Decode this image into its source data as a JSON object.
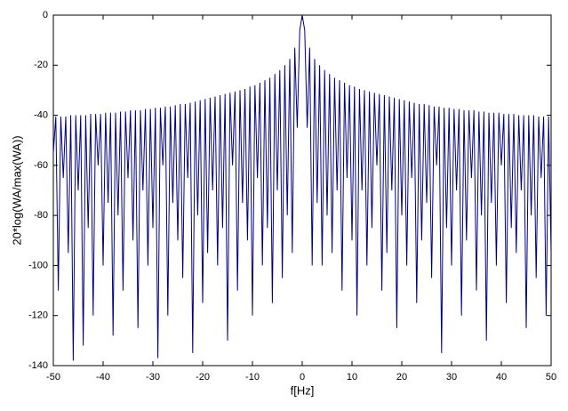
{
  "chart_data": {
    "type": "line",
    "xlabel": "f[Hz]",
    "ylabel": "20*log(WA/max(WA))",
    "color": "#00007f",
    "xlim": [
      -50,
      50
    ],
    "ylim": [
      -140,
      0
    ],
    "xticks": [
      -50,
      -40,
      -30,
      -20,
      -10,
      0,
      10,
      20,
      30,
      40,
      50
    ],
    "yticks": [
      0,
      -20,
      -40,
      -60,
      -80,
      -100,
      -120,
      -140
    ],
    "x": [
      -50,
      -49.5,
      -49,
      -48.5,
      -48,
      -47.5,
      -47,
      -46.5,
      -46,
      -45.5,
      -45,
      -44.5,
      -44,
      -43.5,
      -43,
      -42.5,
      -42,
      -41.5,
      -41,
      -40.5,
      -40,
      -39.5,
      -39,
      -38.5,
      -38,
      -37.5,
      -37,
      -36.5,
      -36,
      -35.5,
      -35,
      -34.5,
      -34,
      -33.5,
      -33,
      -32.5,
      -32,
      -31.5,
      -31,
      -30.5,
      -30,
      -29.5,
      -29,
      -28.5,
      -28,
      -27.5,
      -27,
      -26.5,
      -26,
      -25.5,
      -25,
      -24.5,
      -24,
      -23.5,
      -23,
      -22.5,
      -22,
      -21.5,
      -21,
      -20.5,
      -20,
      -19.5,
      -19,
      -18.5,
      -18,
      -17.5,
      -17,
      -16.5,
      -16,
      -15.5,
      -15,
      -14.5,
      -14,
      -13.5,
      -13,
      -12.5,
      -12,
      -11.5,
      -11,
      -10.5,
      -10,
      -9.5,
      -9,
      -8.5,
      -8,
      -7.5,
      -7,
      -6.5,
      -6,
      -5.5,
      -5,
      -4.5,
      -4,
      -3.5,
      -3,
      -2.5,
      -2,
      -1.5,
      -1,
      -0.5,
      0,
      0.5,
      1,
      1.5,
      2,
      2.5,
      3,
      3.5,
      4,
      4.5,
      5,
      5.5,
      6,
      6.5,
      7,
      7.5,
      8,
      8.5,
      9,
      9.5,
      10,
      10.5,
      11,
      11.5,
      12,
      12.5,
      13,
      13.5,
      14,
      14.5,
      15,
      15.5,
      16,
      16.5,
      17,
      17.5,
      18,
      18.5,
      19,
      19.5,
      20,
      20.5,
      21,
      21.5,
      22,
      22.5,
      23,
      23.5,
      24,
      24.5,
      25,
      25.5,
      26,
      26.5,
      27,
      27.5,
      28,
      28.5,
      29,
      29.5,
      30,
      30.5,
      31,
      31.5,
      32,
      32.5,
      33,
      33.5,
      34,
      34.5,
      35,
      35.5,
      36,
      36.5,
      37,
      37.5,
      38,
      38.5,
      39,
      39.5,
      40,
      40.5,
      41,
      41.5,
      42,
      42.5,
      43,
      43.5,
      44,
      44.5,
      45,
      45.5,
      46,
      46.5,
      47,
      47.5,
      48,
      48.5,
      49,
      49.5,
      50
    ],
    "values": [
      -55,
      -40.5,
      -110,
      -40.5,
      -65,
      -40.5,
      -95,
      -40,
      -138,
      -40,
      -70,
      -40,
      -132,
      -40,
      -85,
      -39.5,
      -120,
      -39.5,
      -60,
      -39.5,
      -100,
      -39,
      -75,
      -39,
      -128,
      -39,
      -80,
      -38.5,
      -110,
      -38.5,
      -65,
      -38,
      -90,
      -38,
      -125,
      -38,
      -70,
      -37.5,
      -100,
      -37.5,
      -85,
      -37,
      -137,
      -37,
      -60,
      -36.5,
      -120,
      -36.5,
      -75,
      -36,
      -90,
      -35.5,
      -105,
      -35.5,
      -65,
      -35,
      -135,
      -34.5,
      -80,
      -34,
      -115,
      -33.5,
      -95,
      -33,
      -70,
      -32.5,
      -100,
      -32,
      -85,
      -31.5,
      -130,
      -31,
      -60,
      -30.5,
      -110,
      -30,
      -75,
      -29.5,
      -90,
      -28.5,
      -120,
      -28,
      -65,
      -27,
      -100,
      -26,
      -85,
      -25,
      -115,
      -23.5,
      -70,
      -22,
      -105,
      -20,
      -80,
      -17.5,
      -95,
      -13,
      -45,
      -6,
      0,
      -6,
      -45,
      -13,
      -100,
      -17.5,
      -75,
      -20,
      -100,
      -22,
      -80,
      -23.5,
      -95,
      -25,
      -70,
      -26,
      -110,
      -27,
      -65,
      -28,
      -90,
      -28.5,
      -120,
      -29.5,
      -70,
      -30,
      -100,
      -30.5,
      -85,
      -31,
      -60,
      -31.5,
      -110,
      -32,
      -95,
      -32.5,
      -70,
      -33,
      -125,
      -33.5,
      -80,
      -34,
      -100,
      -34.5,
      -65,
      -35,
      -115,
      -35.5,
      -90,
      -35.5,
      -75,
      -36,
      -105,
      -36.5,
      -60,
      -36.5,
      -135,
      -37,
      -85,
      -37,
      -100,
      -37.5,
      -70,
      -37.5,
      -120,
      -38,
      -90,
      -38,
      -65,
      -38,
      -110,
      -38.5,
      -80,
      -38.5,
      -130,
      -39,
      -75,
      -39,
      -100,
      -39,
      -60,
      -39.5,
      -115,
      -39.5,
      -85,
      -39.5,
      -95,
      -40,
      -70,
      -40,
      -125,
      -40,
      -80,
      -40,
      -105,
      -40.5,
      -65,
      -40.5,
      -120,
      -40.5,
      -95
    ]
  }
}
